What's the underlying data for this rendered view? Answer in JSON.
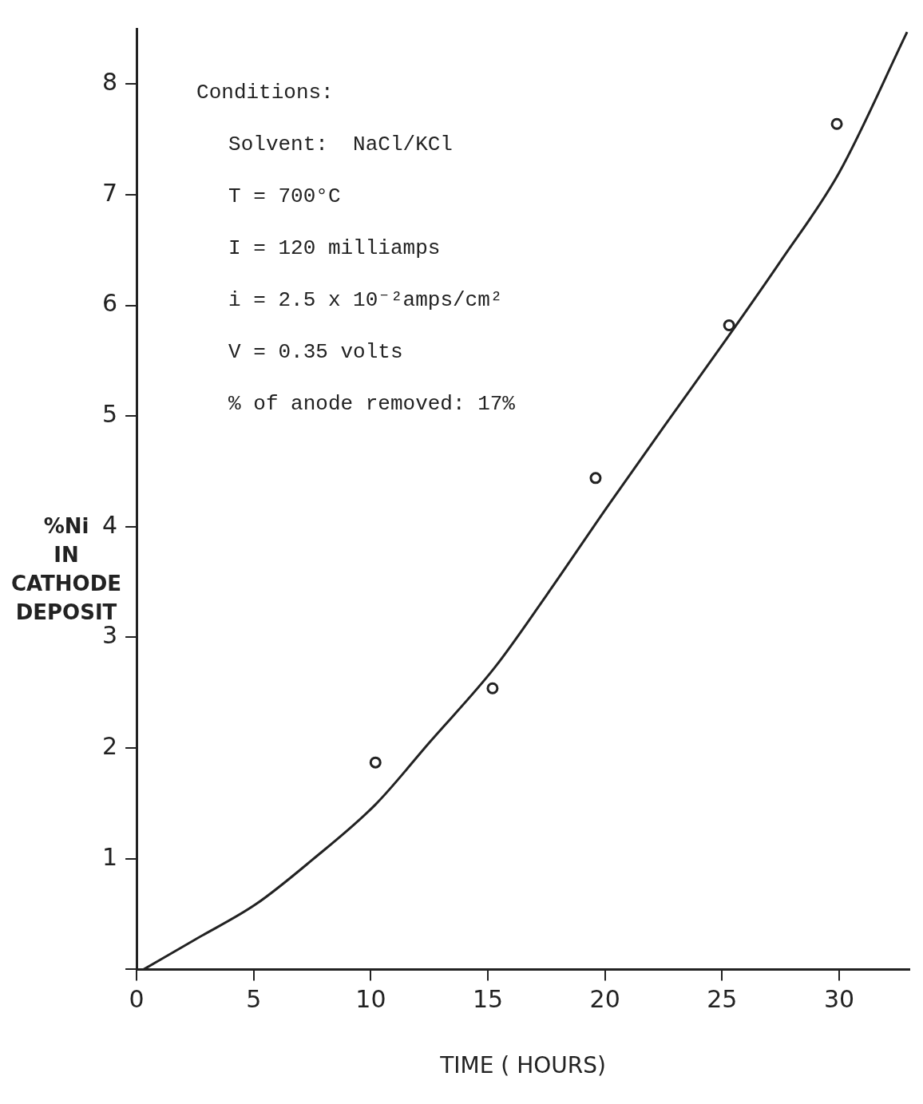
{
  "chart_data": {
    "type": "scatter",
    "xlabel": "TIME ( HOURS)",
    "ylabel": "%Ni IN CATHODE DEPOSIT",
    "xlim": [
      0,
      33
    ],
    "ylim": [
      0,
      8.5
    ],
    "xticks": [
      0,
      5,
      10,
      15,
      20,
      25,
      30
    ],
    "yticks": [
      {
        "value": 0,
        "label": null
      },
      1,
      2,
      3,
      4,
      5,
      6,
      7,
      8
    ],
    "grid": false,
    "legend": false,
    "marker": "circle",
    "series": [
      {
        "color": "#222222",
        "x": [
          10.2,
          15.2,
          19.6,
          25.3,
          29.9
        ],
        "values": [
          1.87,
          2.54,
          4.44,
          5.82,
          7.64
        ]
      },
      {
        "type": "line",
        "color": "#222222",
        "marker": "none",
        "line_style": "solid",
        "x": [
          0.3,
          2.5,
          5.1,
          7.5,
          10.2,
          12.5,
          15.3,
          17.5,
          20.1,
          22.5,
          25.2,
          27.5,
          30,
          32.9
        ],
        "values": [
          0,
          0.27,
          0.59,
          0.99,
          1.49,
          2.05,
          2.73,
          3.38,
          4.18,
          4.9,
          5.7,
          6.4,
          7.2,
          8.47
        ]
      }
    ],
    "annotations": [
      "Conditions:",
      "Solvent:  NaCl/KCl",
      "T = 700°C",
      "I = 120 milliamps",
      "i = 2.5 x 10⁻²amps/cm²",
      "V = 0.35 volts",
      "% of anode removed: 17%"
    ]
  }
}
